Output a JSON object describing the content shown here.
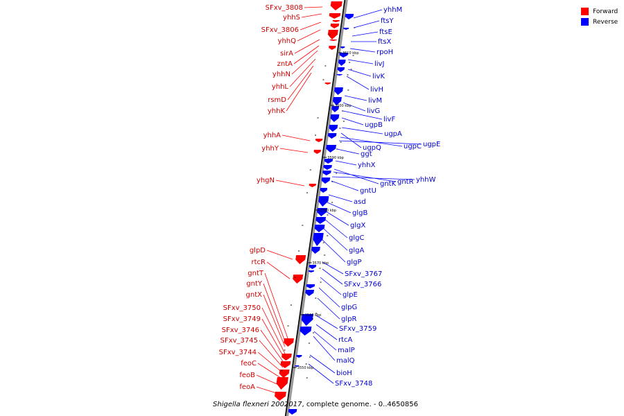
{
  "legend": {
    "forward_label": "Forward",
    "reverse_label": "Reverse",
    "forward_color": "#ff0000",
    "reverse_color": "#0000ff"
  },
  "caption": {
    "organism": "Shigella flexneri 2002017",
    "rest": ", complete genome. - 0..4650856"
  },
  "tick_labels": [
    "3610 kbp",
    "3600 kbp",
    "3590 kbp",
    "3580 kbp",
    "3570 kbp",
    "3560 kbp",
    "3550 kbp"
  ],
  "forward_genes": [
    "SFxv_3808",
    "yhhS",
    "SFxv_3806",
    "yhhQ",
    "sirA",
    "zntA",
    "yhhN",
    "yhhL",
    "rsmD",
    "yhhK",
    "yhhA",
    "yhhY",
    "yhgN",
    "glpD",
    "rtcR",
    "gntT",
    "gntY",
    "gntX",
    "SFxv_3750",
    "SFxv_3749",
    "SFxv_3746",
    "SFxv_3745",
    "SFxv_3744",
    "feoC",
    "feoB",
    "feoA"
  ],
  "reverse_genes": [
    "yhhM",
    "ftsY",
    "ftsE",
    "ftsX",
    "rpoH",
    "livJ",
    "livK",
    "livH",
    "livM",
    "livG",
    "livF",
    "ugpB",
    "ugpA",
    "ugpQ",
    "ugpC",
    "ugpE",
    "ggt",
    "yhhX",
    "gntK",
    "gntR",
    "yhhW",
    "gntU",
    "asd",
    "glgB",
    "glgX",
    "glgC",
    "glgA",
    "glgP",
    "SFxv_3767",
    "SFxv_3766",
    "glpE",
    "glpG",
    "glpR",
    "SFxv_3759",
    "rtcA",
    "malP",
    "malQ",
    "bioH",
    "SFxv_3748"
  ]
}
